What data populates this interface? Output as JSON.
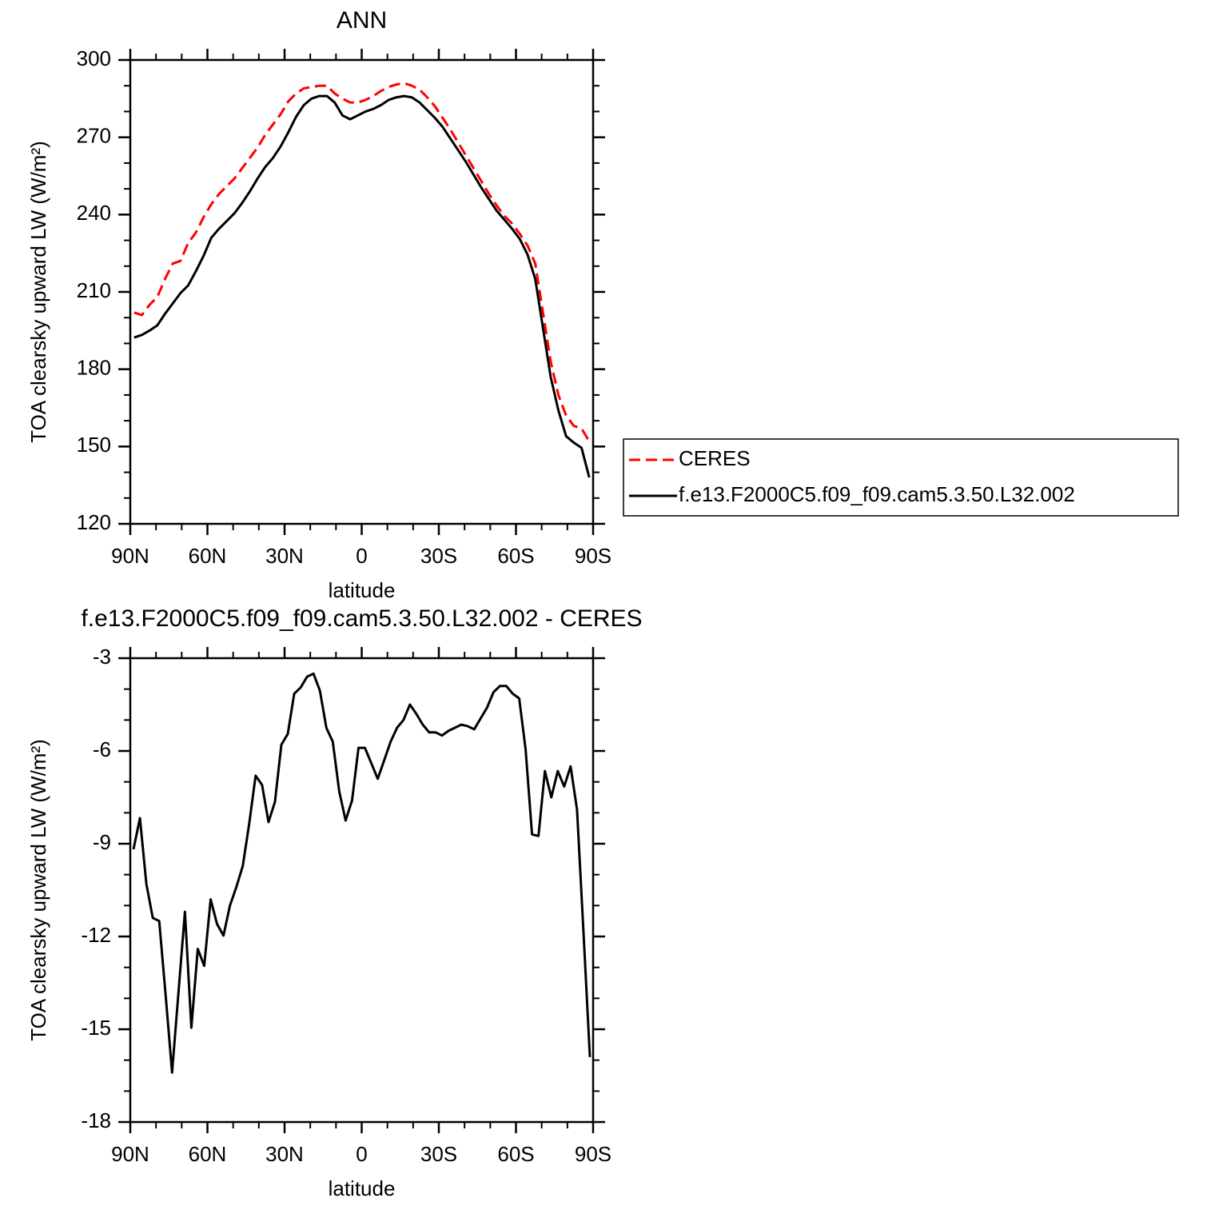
{
  "chart_data": [
    {
      "type": "line",
      "title": "ANN",
      "xlabel": "latitude",
      "ylabel": "TOA clearsky upward LW (W/m²)",
      "x": [
        88.5,
        85.5,
        82.5,
        79.5,
        76.5,
        73.5,
        70.5,
        67.5,
        64.5,
        61.5,
        58.5,
        55.5,
        52.5,
        49.5,
        46.5,
        43.5,
        40.5,
        37.5,
        34.5,
        31.5,
        28.5,
        25.5,
        22.5,
        19.5,
        16.5,
        13.5,
        10.5,
        7.5,
        4.5,
        1.5,
        -1.5,
        -4.5,
        -7.5,
        -10.5,
        -13.5,
        -16.5,
        -19.5,
        -22.5,
        -25.5,
        -28.5,
        -31.5,
        -34.5,
        -37.5,
        -40.5,
        -43.5,
        -46.5,
        -49.5,
        -52.5,
        -55.5,
        -58.5,
        -61.5,
        -64.5,
        -67.5,
        -70.5,
        -73.5,
        -76.5,
        -79.5,
        -82.5,
        -85.5,
        -88.5
      ],
      "series": [
        {
          "name": "CERES",
          "color": "#ff0000",
          "dashed": true,
          "values": [
            202,
            201,
            205,
            208,
            215,
            221,
            222,
            229,
            233,
            239,
            244,
            248,
            251,
            254,
            258,
            262,
            266,
            271,
            275,
            279,
            284,
            287,
            289,
            289.5,
            290,
            290,
            287,
            285,
            283.5,
            283.5,
            284.5,
            286,
            288,
            289.5,
            290.5,
            291,
            290,
            288.5,
            285.5,
            282,
            277.5,
            273,
            268,
            263,
            258,
            253,
            248,
            243.5,
            239.5,
            236.5,
            232.5,
            228,
            221,
            202,
            183,
            170,
            162,
            158,
            157,
            152
          ]
        },
        {
          "name": "f.e13.F2000C5.f09_f09.cam5.3.50.L32.002",
          "color": "#000000",
          "dashed": false,
          "values": [
            192.3,
            193.3,
            195,
            197,
            201.5,
            205.5,
            209.5,
            212.5,
            218,
            224,
            231,
            234.5,
            237.5,
            240.5,
            244.5,
            249,
            254,
            258.5,
            262,
            266.5,
            272,
            278,
            282.5,
            285,
            286,
            286,
            283.5,
            278.5,
            277,
            278.5,
            280,
            281,
            282.5,
            284.5,
            285.5,
            286,
            285.5,
            283.5,
            280.5,
            277.5,
            274,
            269.5,
            265,
            260.5,
            255.5,
            250.5,
            246,
            241.5,
            238,
            234.5,
            230.5,
            224.5,
            215,
            196,
            177,
            164,
            154,
            151.5,
            149.5,
            138
          ]
        }
      ],
      "xlim": [
        90,
        -90
      ],
      "xticks": [
        {
          "value": 90,
          "label": "90N"
        },
        {
          "value": 60,
          "label": "60N"
        },
        {
          "value": 30,
          "label": "30N"
        },
        0,
        {
          "value": -30,
          "label": "30S"
        },
        {
          "value": -60,
          "label": "60S"
        },
        {
          "value": -90,
          "label": "90S"
        }
      ],
      "minor_xticks": [
        80,
        70,
        50,
        40,
        20,
        10,
        -10,
        -20,
        -40,
        -50,
        -70,
        -80
      ],
      "ylim": [
        120,
        300
      ],
      "yticks": [
        120,
        150,
        180,
        210,
        240,
        270,
        300
      ],
      "minor_yticks": [
        130,
        140,
        160,
        170,
        190,
        200,
        220,
        230,
        250,
        260,
        280,
        290
      ],
      "legend": "right"
    },
    {
      "type": "line",
      "title": "f.e13.F2000C5.f09_f09.cam5.3.50.L32.002 - CERES",
      "xlabel": "latitude",
      "ylabel": "TOA clearsky upward LW (W/m²)",
      "x": [
        88.75,
        86.25,
        83.75,
        81.25,
        78.75,
        76.25,
        73.75,
        71.25,
        68.75,
        66.25,
        63.75,
        61.25,
        58.75,
        56.25,
        53.75,
        51.25,
        48.75,
        46.25,
        43.75,
        41.25,
        38.75,
        36.25,
        33.75,
        31.25,
        28.75,
        26.25,
        23.75,
        21.25,
        18.75,
        16.25,
        13.75,
        11.25,
        8.75,
        6.25,
        3.75,
        1.25,
        -1.25,
        -3.75,
        -6.25,
        -8.75,
        -11.25,
        -13.75,
        -16.25,
        -18.75,
        -21.25,
        -23.75,
        -26.25,
        -28.75,
        -31.25,
        -33.75,
        -36.25,
        -38.75,
        -41.25,
        -43.75,
        -46.25,
        -48.75,
        -51.25,
        -53.75,
        -56.25,
        -58.75,
        -61.25,
        -63.75,
        -66.25,
        -68.75,
        -71.25,
        -73.75,
        -76.25,
        -78.75,
        -81.25,
        -83.75,
        -86.25,
        -88.75
      ],
      "values": [
        -9.18,
        -8.17,
        -10.3,
        -11.4,
        -11.5,
        -13.9,
        -16.4,
        -13.8,
        -11.2,
        -14.95,
        -12.4,
        -12.95,
        -10.8,
        -11.6,
        -11.97,
        -11.0,
        -10.4,
        -9.72,
        -8.35,
        -6.8,
        -7.1,
        -8.3,
        -7.65,
        -5.8,
        -5.45,
        -4.15,
        -3.95,
        -3.6,
        -3.5,
        -4.05,
        -5.25,
        -5.7,
        -7.3,
        -8.25,
        -7.6,
        -5.9,
        -5.9,
        -6.4,
        -6.9,
        -6.3,
        -5.7,
        -5.25,
        -5.0,
        -4.5,
        -4.8,
        -5.15,
        -5.4,
        -5.4,
        -5.5,
        -5.35,
        -5.25,
        -5.15,
        -5.2,
        -5.3,
        -4.95,
        -4.6,
        -4.1,
        -3.9,
        -3.9,
        -4.15,
        -4.3,
        -5.95,
        -8.7,
        -8.75,
        -6.65,
        -7.5,
        -6.65,
        -7.15,
        -6.5,
        -7.9,
        -11.85,
        -15.9
      ],
      "color": "#000000",
      "xlim": [
        90,
        -90
      ],
      "xticks": [
        {
          "value": 90,
          "label": "90N"
        },
        {
          "value": 60,
          "label": "60N"
        },
        {
          "value": 30,
          "label": "30N"
        },
        0,
        {
          "value": -30,
          "label": "30S"
        },
        {
          "value": -60,
          "label": "60S"
        },
        {
          "value": -90,
          "label": "90S"
        }
      ],
      "minor_xticks": [
        80,
        70,
        50,
        40,
        20,
        10,
        -10,
        -20,
        -40,
        -50,
        -70,
        -80
      ],
      "ylim": [
        -18,
        -3
      ],
      "yticks": [
        -18,
        -15,
        -12,
        -9,
        -6,
        -3
      ],
      "minor_yticks": [
        -17,
        -16,
        -14,
        -13,
        -11,
        -10,
        -8,
        -7,
        -5,
        -4
      ]
    }
  ]
}
